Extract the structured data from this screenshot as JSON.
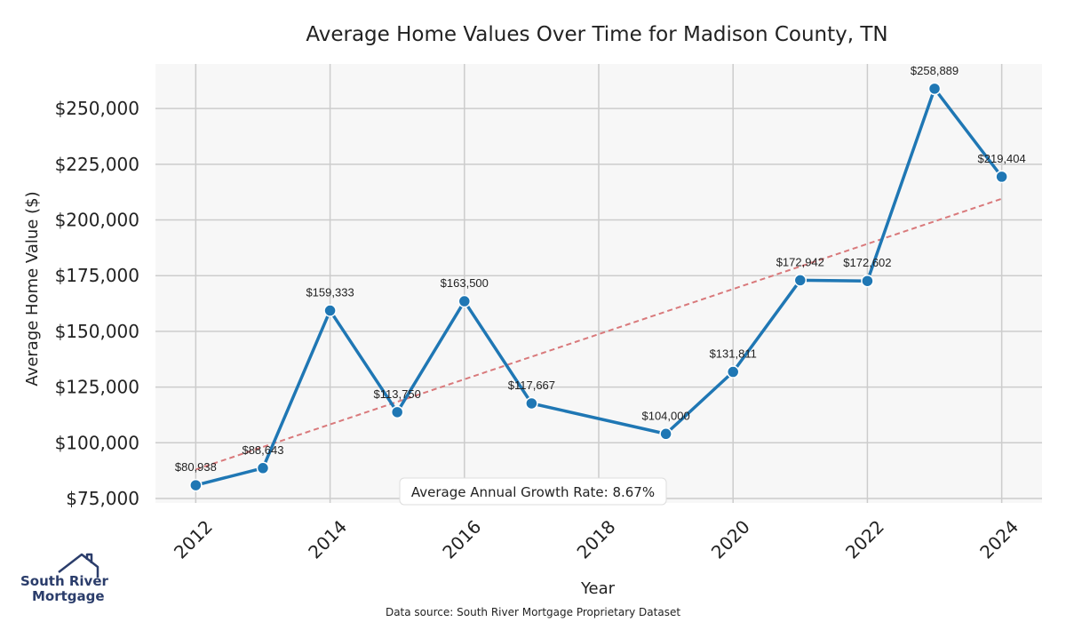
{
  "chart_data": {
    "type": "line",
    "title": "Average Home Values Over Time for Madison County, TN",
    "xlabel": "Year",
    "ylabel": "Average Home Value ($)",
    "x": [
      2012,
      2013,
      2014,
      2015,
      2016,
      2017,
      2019,
      2020,
      2021,
      2022,
      2023,
      2024
    ],
    "series": [
      {
        "values": [
          80938,
          88643,
          159333,
          113750,
          163500,
          117667,
          104000,
          131811,
          172942,
          172602,
          258889,
          219404
        ],
        "labels": [
          "$80,938",
          "$88,643",
          "$159,333",
          "$113,750",
          "$163,500",
          "$117,667",
          "$104,000",
          "$131,811",
          "$172,942",
          "$172,602",
          "$258,889",
          "$219,404"
        ],
        "color": "#1f77b4"
      }
    ],
    "trendline": {
      "x": [
        2012,
        2024
      ],
      "y": [
        88000,
        209500
      ],
      "color": "#d9797b",
      "style": "dashed"
    },
    "x_ticks": [
      "2012",
      "2014",
      "2016",
      "2018",
      "2020",
      "2022",
      "2024"
    ],
    "y_ticks": [
      "$75,000",
      "$100,000",
      "$125,000",
      "$150,000",
      "$175,000",
      "$200,000",
      "$225,000",
      "$250,000"
    ],
    "xlim": [
      2011.4,
      2024.6
    ],
    "ylim": [
      73000,
      270000
    ],
    "grid": true,
    "annotation": "Average Annual Growth Rate: 8.67%",
    "background_color": "#f7f7f7",
    "grid_color": "#cccccc"
  },
  "source": "Data source: South River Mortgage Proprietary Dataset",
  "logo": {
    "line1": "South River",
    "line2": "Mortgage"
  }
}
